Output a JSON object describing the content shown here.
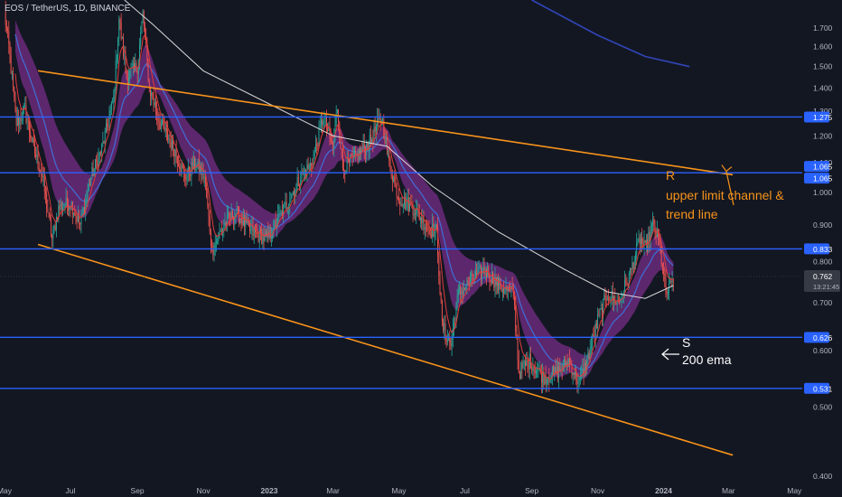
{
  "title": "EOS / TetherUS, 1D, BINANCE",
  "colors": {
    "background": "#131722",
    "axis_text": "#b2b5be",
    "hline": "#2962ff",
    "orange": "#f7931a",
    "up": "#26a69a",
    "down": "#ef5350",
    "ema_fast": "#e03a3a",
    "ribbon": "#6b2a7a",
    "ema_mid": "#3f6fd8",
    "ema200": "#d8d8d8",
    "dark_blue": "#3046b8",
    "label_white": "#ffffff"
  },
  "chart_data": {
    "type": "candlestick",
    "title": "EOS / TetherUS, 1D, BINANCE",
    "log_scale": true,
    "grid": false,
    "ylim": [
      0.385,
      1.86
    ],
    "y_ticks": [
      "1.700",
      "1.600",
      "1.500",
      "1.400",
      "1.300",
      "1.200",
      "1.100",
      "1.000",
      "0.900",
      "0.800",
      "0.700",
      "0.600",
      "0.500",
      "0.400"
    ],
    "x_ticks": [
      "May",
      "Jul",
      "Sep",
      "Nov",
      "2023",
      "Mar",
      "May",
      "Jul",
      "Sep",
      "Nov",
      "2024",
      "Mar",
      "May"
    ],
    "x_tick_dates": [
      "2022-05-01",
      "2022-07-01",
      "2022-09-01",
      "2022-11-01",
      "2023-01-01",
      "2023-03-01",
      "2023-05-01",
      "2023-07-01",
      "2023-09-01",
      "2023-11-01",
      "2024-01-01",
      "2024-03-01",
      "2024-05-01"
    ],
    "price_path": [
      [
        "2022-05-01",
        1.78
      ],
      [
        "2022-05-05",
        1.6
      ],
      [
        "2022-05-12",
        1.25
      ],
      [
        "2022-05-20",
        1.3
      ],
      [
        "2022-05-28",
        1.15
      ],
      [
        "2022-06-05",
        1.05
      ],
      [
        "2022-06-14",
        0.86
      ],
      [
        "2022-06-20",
        0.95
      ],
      [
        "2022-07-01",
        0.97
      ],
      [
        "2022-07-10",
        0.9
      ],
      [
        "2022-07-20",
        1.05
      ],
      [
        "2022-07-30",
        1.15
      ],
      [
        "2022-08-10",
        1.35
      ],
      [
        "2022-08-15",
        1.75
      ],
      [
        "2022-08-22",
        1.45
      ],
      [
        "2022-09-01",
        1.5
      ],
      [
        "2022-09-06",
        1.78
      ],
      [
        "2022-09-12",
        1.4
      ],
      [
        "2022-09-22",
        1.25
      ],
      [
        "2022-10-05",
        1.15
      ],
      [
        "2022-10-15",
        1.05
      ],
      [
        "2022-10-25",
        1.1
      ],
      [
        "2022-11-02",
        1.05
      ],
      [
        "2022-11-09",
        0.83
      ],
      [
        "2022-11-20",
        0.9
      ],
      [
        "2022-12-01",
        0.94
      ],
      [
        "2022-12-15",
        0.88
      ],
      [
        "2022-12-30",
        0.86
      ],
      [
        "2023-01-15",
        0.95
      ],
      [
        "2023-01-30",
        1.05
      ],
      [
        "2023-02-10",
        1.1
      ],
      [
        "2023-02-20",
        1.28
      ],
      [
        "2023-03-01",
        1.15
      ],
      [
        "2023-03-05",
        1.32
      ],
      [
        "2023-03-10",
        1.08
      ],
      [
        "2023-03-22",
        1.12
      ],
      [
        "2023-04-05",
        1.18
      ],
      [
        "2023-04-15",
        1.28
      ],
      [
        "2023-04-22",
        1.1
      ],
      [
        "2023-05-01",
        0.98
      ],
      [
        "2023-05-15",
        0.95
      ],
      [
        "2023-05-28",
        0.89
      ],
      [
        "2023-06-05",
        0.88
      ],
      [
        "2023-06-10",
        0.65
      ],
      [
        "2023-06-18",
        0.61
      ],
      [
        "2023-06-25",
        0.72
      ],
      [
        "2023-07-10",
        0.76
      ],
      [
        "2023-07-20",
        0.78
      ],
      [
        "2023-08-01",
        0.74
      ],
      [
        "2023-08-15",
        0.72
      ],
      [
        "2023-08-20",
        0.56
      ],
      [
        "2023-08-30",
        0.58
      ],
      [
        "2023-09-12",
        0.55
      ],
      [
        "2023-09-25",
        0.56
      ],
      [
        "2023-10-05",
        0.58
      ],
      [
        "2023-10-15",
        0.54
      ],
      [
        "2023-10-22",
        0.58
      ],
      [
        "2023-11-01",
        0.66
      ],
      [
        "2023-11-10",
        0.72
      ],
      [
        "2023-11-20",
        0.7
      ],
      [
        "2023-12-01",
        0.77
      ],
      [
        "2023-12-10",
        0.86
      ],
      [
        "2023-12-15",
        0.83
      ],
      [
        "2023-12-22",
        0.9
      ],
      [
        "2023-12-28",
        0.85
      ],
      [
        "2024-01-03",
        0.72
      ],
      [
        "2024-01-08",
        0.74
      ],
      [
        "2024-01-10",
        0.762
      ]
    ],
    "horizontal_levels": [
      {
        "value": 1.275,
        "label": "1.275"
      },
      {
        "value": 1.065,
        "label": "1.065"
      },
      {
        "value": 0.833,
        "label": "0.833"
      },
      {
        "value": 0.626,
        "label": "0.626"
      },
      {
        "value": 0.531,
        "label": "0.531"
      }
    ],
    "extra_price_label": "1.065",
    "trend_lines": [
      {
        "from": [
          "2022-06-01",
          1.48
        ],
        "to": [
          "2024-03-05",
          1.058
        ]
      },
      {
        "from": [
          "2022-06-01",
          0.845
        ],
        "to": [
          "2024-03-05",
          0.428
        ]
      }
    ],
    "long_ma": [
      [
        "2023-09-01",
        1.86
      ],
      [
        "2023-11-01",
        1.66
      ],
      [
        "2023-12-15",
        1.55
      ],
      [
        "2024-01-25",
        1.5
      ]
    ],
    "ema200": [
      [
        "2022-08-20",
        1.86
      ],
      [
        "2022-09-15",
        1.72
      ],
      [
        "2022-11-01",
        1.48
      ],
      [
        "2023-01-01",
        1.33
      ],
      [
        "2023-03-01",
        1.2
      ],
      [
        "2023-04-20",
        1.16
      ],
      [
        "2023-06-01",
        1.02
      ],
      [
        "2023-08-01",
        0.88
      ],
      [
        "2023-10-01",
        0.78
      ],
      [
        "2023-11-10",
        0.725
      ],
      [
        "2023-12-15",
        0.71
      ],
      [
        "2024-01-10",
        0.74
      ]
    ],
    "current_price": {
      "value": 0.762,
      "label": "0.762",
      "countdown": "13:21:45"
    },
    "annotations": {
      "r_label": "R",
      "r_text": [
        "upper limit channel &",
        "trend line"
      ],
      "s_label": "S",
      "s_text": "200 ema"
    }
  }
}
